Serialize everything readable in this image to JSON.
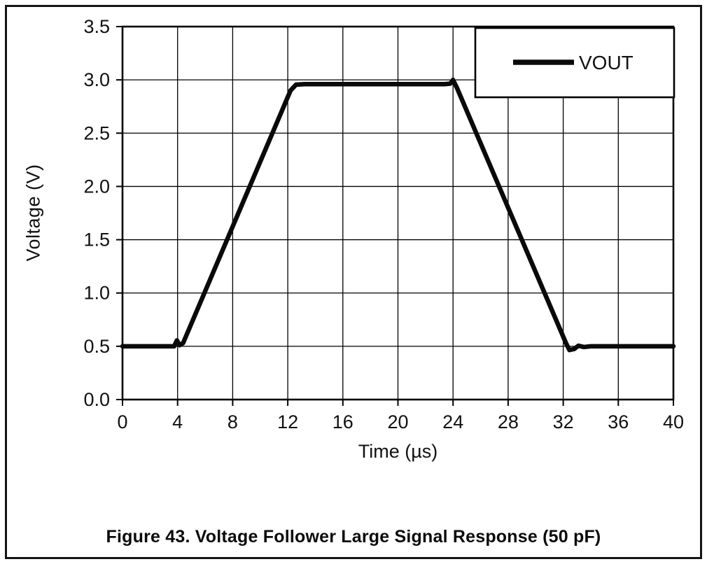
{
  "figure": {
    "caption": "Figure 43. Voltage Follower Large Signal Response (50 pF)"
  },
  "chart_data": {
    "type": "line",
    "title": "",
    "xlabel": "Time (µs)",
    "ylabel": "Voltage (V)",
    "xlim": [
      0,
      40
    ],
    "ylim": [
      0,
      3.5
    ],
    "xticks": [
      0,
      4,
      8,
      12,
      16,
      20,
      24,
      28,
      32,
      36,
      40
    ],
    "xtick_labels": [
      "0",
      "4",
      "8",
      "12",
      "16",
      "20",
      "24",
      "28",
      "32",
      "36",
      "40"
    ],
    "yticks": [
      0.0,
      0.5,
      1.0,
      1.5,
      2.0,
      2.5,
      3.0,
      3.5
    ],
    "ytick_labels": [
      "0.0",
      "0.5",
      "1.0",
      "1.5",
      "2.0",
      "2.5",
      "3.0",
      "3.5"
    ],
    "grid": true,
    "legend": {
      "position": "top-right",
      "entries": [
        "VOUT"
      ]
    },
    "line_color": "#0a0a0a",
    "series": [
      {
        "name": "VOUT",
        "color": "#0a0a0a",
        "width": 6.5,
        "points": [
          [
            0.0,
            0.5
          ],
          [
            3.75,
            0.5
          ],
          [
            3.95,
            0.555
          ],
          [
            4.15,
            0.51
          ],
          [
            4.4,
            0.53
          ],
          [
            12.2,
            2.9
          ],
          [
            12.6,
            2.955
          ],
          [
            13.2,
            2.96
          ],
          [
            23.4,
            2.96
          ],
          [
            23.8,
            2.965
          ],
          [
            24.0,
            3.0
          ],
          [
            24.3,
            2.92
          ],
          [
            32.2,
            0.53
          ],
          [
            32.45,
            0.465
          ],
          [
            32.8,
            0.475
          ],
          [
            33.1,
            0.505
          ],
          [
            33.5,
            0.493
          ],
          [
            34.0,
            0.5
          ],
          [
            40.0,
            0.5
          ]
        ]
      }
    ]
  }
}
